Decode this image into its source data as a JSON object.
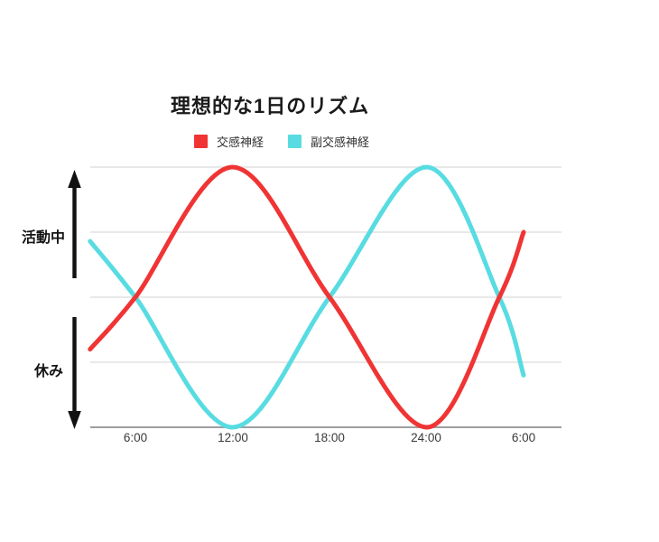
{
  "title": "理想的な1日のリズム",
  "legend": {
    "items": [
      {
        "label": "交感神経",
        "color": "#f03434"
      },
      {
        "label": "副交感神経",
        "color": "#58dce2"
      }
    ]
  },
  "y_axis": {
    "high_label": "活動中",
    "low_label": "休み"
  },
  "x_ticks": [
    "6:00",
    "12:00",
    "18:00",
    "24:00",
    "6:00"
  ],
  "chart_data": {
    "type": "line",
    "title": "理想的な1日のリズム",
    "x_axis": {
      "unit": "hour-of-day",
      "tick_labels": [
        "6:00",
        "12:00",
        "18:00",
        "24:00",
        "6:00"
      ],
      "tick_hours": [
        6,
        12,
        18,
        24,
        30
      ]
    },
    "y_axis": {
      "high_label": "活動中",
      "low_label": "休み",
      "range": [
        -1,
        1
      ],
      "gridline_count": 5,
      "grid_on": true
    },
    "legend_position": "top",
    "series": [
      {
        "name": "交感神経",
        "color": "#f03434",
        "points": [
          [
            3.2,
            -0.4
          ],
          [
            6,
            0
          ],
          [
            12,
            1
          ],
          [
            18,
            0
          ],
          [
            24,
            -1
          ],
          [
            28.5,
            0
          ],
          [
            30,
            0.5
          ]
        ]
      },
      {
        "name": "副交感神経",
        "color": "#58dce2",
        "points": [
          [
            3.2,
            0.43
          ],
          [
            6,
            0
          ],
          [
            12,
            -1
          ],
          [
            18,
            0
          ],
          [
            24,
            1
          ],
          [
            28.5,
            0
          ],
          [
            30,
            -0.6
          ]
        ]
      }
    ]
  }
}
